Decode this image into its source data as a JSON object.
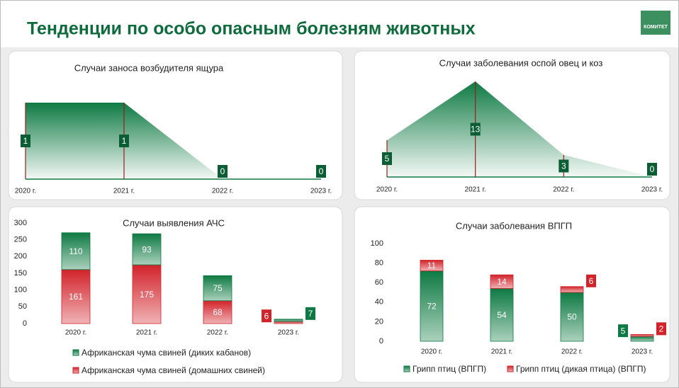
{
  "title": "Тенденции по особо опасным болезням животных",
  "logo": "КОМИТЕТ",
  "chart_data": [
    {
      "type": "area",
      "title": "Случаи заноса возбудителя ящура",
      "categories": [
        "2020 г.",
        "2021 г.",
        "2022 г.",
        "2023 г."
      ],
      "values": [
        1,
        1,
        0,
        0
      ],
      "color": "#0e7a43"
    },
    {
      "type": "area",
      "title": "Случаи заболевания оспой овец и коз",
      "categories": [
        "2020 г.",
        "2021 г.",
        "2022 г.",
        "2023 г."
      ],
      "values": [
        5,
        13,
        3,
        0
      ],
      "color": "#0e7a43"
    },
    {
      "type": "stacked_bar",
      "title": "Случаи выявления АЧС",
      "categories": [
        "2020 г.",
        "2021 г.",
        "2022 г.",
        "2023 г."
      ],
      "series": [
        {
          "name": "Африканская чума свиней (диких кабанов)",
          "color": "#0e7a43",
          "values": [
            110,
            93,
            75,
            7
          ]
        },
        {
          "name": "Африканская чума свиней (домашних свиней)",
          "color": "#d2232a",
          "values": [
            161,
            175,
            68,
            6
          ]
        }
      ],
      "stack_order": "last_at_bottom",
      "ylim": [
        0,
        300
      ],
      "yticks": [
        0,
        50,
        100,
        150,
        200,
        250,
        300
      ],
      "legend": "bottom"
    },
    {
      "type": "stacked_bar",
      "title": "Случаи заболевания ВПГП",
      "categories": [
        "2020 г.",
        "2021 г.",
        "2022 г.",
        "2023 г."
      ],
      "series": [
        {
          "name": "Грипп птиц (ВПГП)",
          "color": "#0e7a43",
          "values": [
            72,
            54,
            50,
            5
          ]
        },
        {
          "name": "Грипп птиц (дикая птица) (ВПГП)",
          "color": "#d2232a",
          "values": [
            11,
            14,
            6,
            2
          ]
        }
      ],
      "stack_order": "first_at_bottom",
      "ylim": [
        0,
        100
      ],
      "yticks": [
        0,
        20,
        40,
        60,
        80,
        100
      ],
      "legend": "bottom"
    }
  ]
}
